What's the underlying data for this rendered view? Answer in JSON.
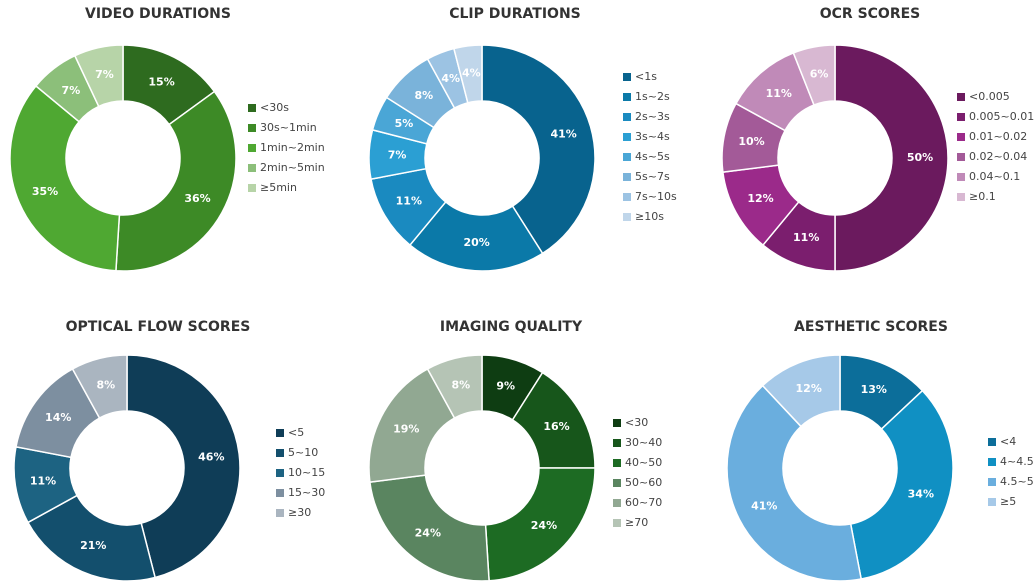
{
  "chart_data": [
    {
      "type": "pie",
      "donut": true,
      "title": "VIDEO DURATIONS",
      "categories": [
        "<30s",
        "30s~1min",
        "1min~2min",
        "2min~5min",
        "≥5min"
      ],
      "values": [
        15,
        36,
        35,
        7,
        7
      ],
      "value_labels": [
        "15%",
        "36%",
        "35%",
        "7%",
        "7%"
      ],
      "colors": [
        "#2e6b1f",
        "#3d8a26",
        "#4fa832",
        "#8cbf7a",
        "#b7d4a8"
      ]
    },
    {
      "type": "pie",
      "donut": true,
      "title": "CLIP DURATIONS",
      "categories": [
        "<1s",
        "1s~2s",
        "2s~3s",
        "3s~4s",
        "4s~5s",
        "5s~7s",
        "7s~10s",
        "≥10s"
      ],
      "values": [
        41,
        20,
        11,
        7,
        5,
        8,
        4,
        4
      ],
      "value_labels": [
        "41%",
        "20%",
        "11%",
        "7%",
        "5%",
        "8%",
        "4%",
        "4%"
      ],
      "colors": [
        "#08638e",
        "#0b79a8",
        "#1a8ac0",
        "#2b9fd3",
        "#4aa6d6",
        "#7ab3da",
        "#9cc3e3",
        "#c0d6ea"
      ]
    },
    {
      "type": "pie",
      "donut": true,
      "title": "OCR SCORES",
      "categories": [
        "<0.005",
        "0.005~0.01",
        "0.01~0.02",
        "0.02~0.04",
        "0.04~0.1",
        "≥0.1"
      ],
      "values": [
        50,
        11,
        12,
        10,
        11,
        6
      ],
      "value_labels": [
        "50%",
        "11%",
        "12%",
        "10%",
        "11%",
        "6%"
      ],
      "colors": [
        "#6b1a5e",
        "#7b1e6e",
        "#9b2a8a",
        "#a35a98",
        "#c08ab8",
        "#d8b8d2"
      ]
    },
    {
      "type": "pie",
      "donut": true,
      "title": "OPTICAL FLOW SCORES",
      "categories": [
        "<5",
        "5~10",
        "10~15",
        "15~30",
        "≥30"
      ],
      "values": [
        46,
        21,
        11,
        14,
        8
      ],
      "value_labels": [
        "46%",
        "21%",
        "11%",
        "14%",
        "8%"
      ],
      "colors": [
        "#0f3d57",
        "#134f6d",
        "#1d6382",
        "#7d8fa0",
        "#aab5c0"
      ]
    },
    {
      "type": "pie",
      "donut": true,
      "title": "IMAGING QUALITY",
      "categories": [
        "<30",
        "30~40",
        "40~50",
        "50~60",
        "60~70",
        "≥70"
      ],
      "values": [
        9,
        16,
        24,
        24,
        19,
        8
      ],
      "value_labels": [
        "9%",
        "16%",
        "24%",
        "24%",
        "19%",
        "8%"
      ],
      "colors": [
        "#0e3d12",
        "#17561b",
        "#1d6b23",
        "#5a8560",
        "#91a892",
        "#b5c4b5"
      ]
    },
    {
      "type": "pie",
      "donut": true,
      "title": "AESTHETIC SCORES",
      "categories": [
        "<4",
        "4~4.5",
        "4.5~5",
        "≥5"
      ],
      "values": [
        13,
        34,
        41,
        12
      ],
      "value_labels": [
        "13%",
        "34%",
        "41%",
        "12%"
      ],
      "colors": [
        "#0c6e9a",
        "#1090c3",
        "#6aaede",
        "#a6c9e8"
      ]
    }
  ]
}
